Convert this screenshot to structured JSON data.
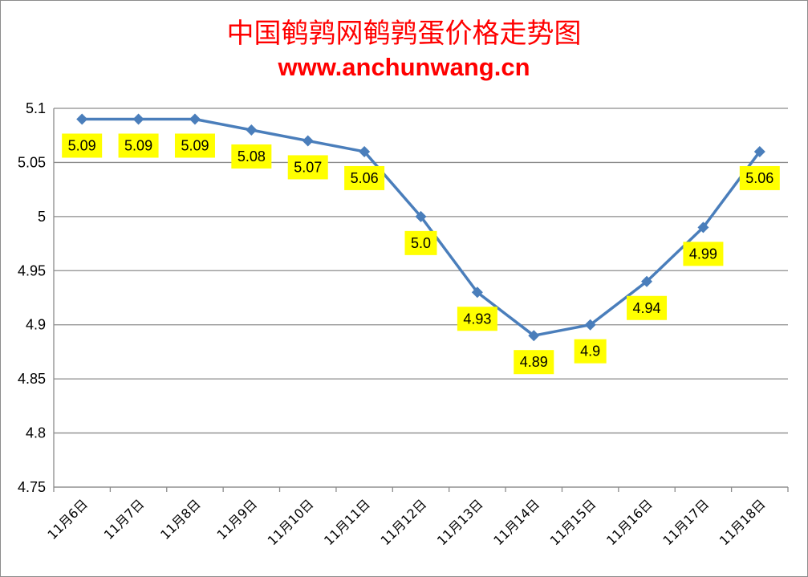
{
  "title": "中国鹌鹑网鹌鹑蛋价格走势图",
  "subtitle": "www.anchunwang.cn",
  "colors": {
    "title": "#ff0000",
    "line": "#4a7ebb",
    "label_bg": "#ffff00",
    "grid": "#8c8c8c"
  },
  "chart_data": {
    "type": "line",
    "title": "中国鹌鹑网鹌鹑蛋价格走势图",
    "subtitle": "www.anchunwang.cn",
    "categories": [
      "11月6日",
      "11月7日",
      "11月8日",
      "11月9日",
      "11月10日",
      "11月11日",
      "11月12日",
      "11月13日",
      "11月14日",
      "11月15日",
      "11月16日",
      "11月17日",
      "11月18日"
    ],
    "series": [
      {
        "values": [
          5.09,
          5.09,
          5.09,
          5.08,
          5.07,
          5.06,
          5.0,
          4.93,
          4.89,
          4.9,
          4.94,
          4.99,
          5.06
        ]
      }
    ],
    "data_labels": [
      "5.09",
      "5.09",
      "5.09",
      "5.08",
      "5.07",
      "5.06",
      "5.0",
      "4.93",
      "4.89",
      "4.9",
      "4.94",
      "4.99",
      "5.06"
    ],
    "yticks": [
      "4.75",
      "4.8",
      "4.85",
      "4.9",
      "4.95",
      "5",
      "5.05",
      "5.1"
    ],
    "ylim": [
      4.75,
      5.1
    ],
    "grid": true,
    "legend": "none",
    "marker": "diamond"
  }
}
